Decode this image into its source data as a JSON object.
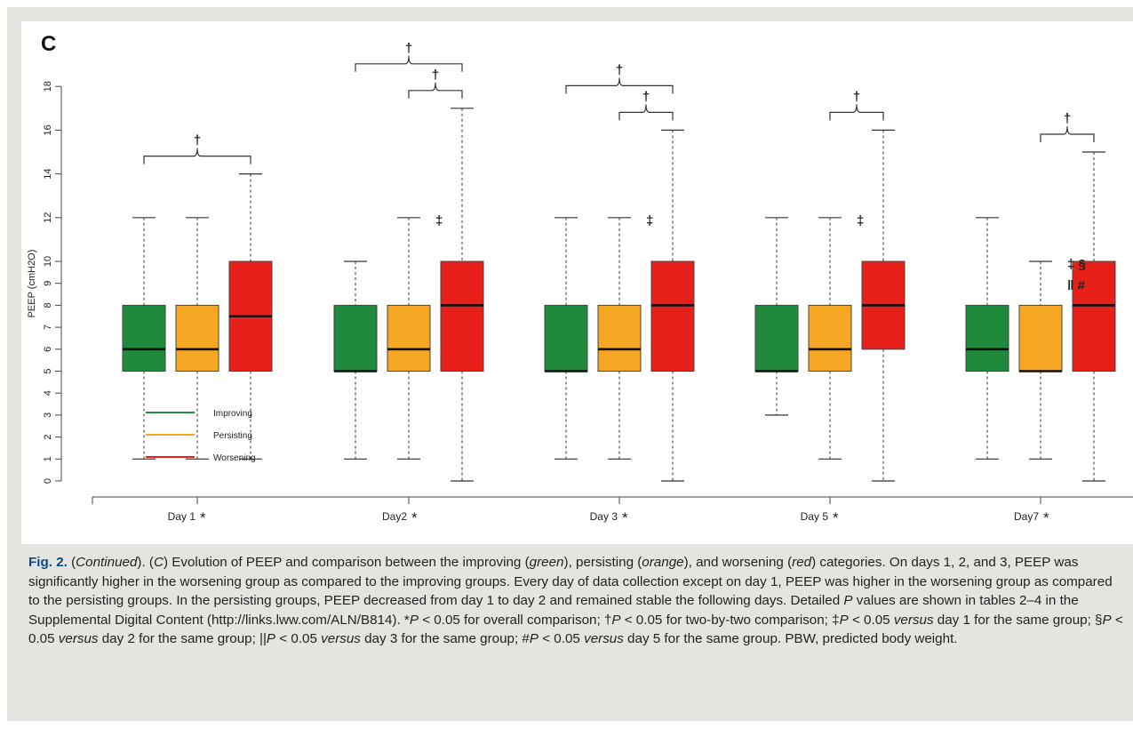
{
  "chart_data": {
    "type": "box",
    "panel_label": "C",
    "ylabel": "PEEP (cmH2O)",
    "xlabel": "",
    "ylim": [
      0,
      18
    ],
    "yticks": [
      0,
      1,
      2,
      3,
      4,
      5,
      6,
      7,
      8,
      9,
      10,
      12,
      14,
      16,
      18
    ],
    "y_scale": "nonlinear (0-10 step 1, 10-18 step 2)",
    "grid": false,
    "legend_position": "bottom-left",
    "legend": [
      "Improving",
      "Persisting",
      "Worsening"
    ],
    "colors": {
      "Improving": "#1f8a3c",
      "Persisting": "#f5a623",
      "Worsening": "#e8201c"
    },
    "days": [
      {
        "label": "Day 1",
        "mark": "*",
        "boxes": [
          {
            "group": "Improving",
            "min": 1,
            "q1": 5,
            "median": 6,
            "q3": 8,
            "max": 12
          },
          {
            "group": "Persisting",
            "min": 1,
            "q1": 5,
            "median": 6,
            "q3": 8,
            "max": 12
          },
          {
            "group": "Worsening",
            "min": 1,
            "q1": 5,
            "median": 7.5,
            "q3": 10,
            "max": 14
          }
        ],
        "annotations": [],
        "brackets": [
          {
            "from": "Improving",
            "to": "Worsening",
            "mark": "†"
          }
        ]
      },
      {
        "label": "Day2",
        "mark": "*",
        "boxes": [
          {
            "group": "Improving",
            "min": 1,
            "q1": 5,
            "median": 5,
            "q3": 8,
            "max": 10
          },
          {
            "group": "Persisting",
            "min": 1,
            "q1": 5,
            "median": 6,
            "q3": 8,
            "max": 12
          },
          {
            "group": "Worsening",
            "min": 0,
            "q1": 5,
            "median": 8,
            "q3": 10,
            "max": 17
          }
        ],
        "annotations": [
          {
            "group": "Persisting",
            "lines": [
              "‡"
            ]
          }
        ],
        "brackets": [
          {
            "from": "Improving",
            "to": "Worsening",
            "mark": "†"
          },
          {
            "from": "Persisting",
            "to": "Worsening",
            "mark": "†"
          }
        ]
      },
      {
        "label": "Day 3",
        "mark": "*",
        "boxes": [
          {
            "group": "Improving",
            "min": 1,
            "q1": 5,
            "median": 5,
            "q3": 8,
            "max": 12
          },
          {
            "group": "Persisting",
            "min": 1,
            "q1": 5,
            "median": 6,
            "q3": 8,
            "max": 12
          },
          {
            "group": "Worsening",
            "min": 0,
            "q1": 5,
            "median": 8,
            "q3": 10,
            "max": 16
          }
        ],
        "annotations": [
          {
            "group": "Persisting",
            "lines": [
              "‡"
            ]
          }
        ],
        "brackets": [
          {
            "from": "Improving",
            "to": "Worsening",
            "mark": "†"
          },
          {
            "from": "Persisting",
            "to": "Worsening",
            "mark": "†"
          }
        ]
      },
      {
        "label": "Day 5",
        "mark": "*",
        "boxes": [
          {
            "group": "Improving",
            "min": 3,
            "q1": 5,
            "median": 5,
            "q3": 8,
            "max": 12
          },
          {
            "group": "Persisting",
            "min": 1,
            "q1": 5,
            "median": 6,
            "q3": 8,
            "max": 12
          },
          {
            "group": "Worsening",
            "min": 0,
            "q1": 6,
            "median": 8,
            "q3": 10,
            "max": 16
          }
        ],
        "annotations": [
          {
            "group": "Persisting",
            "lines": [
              "‡"
            ]
          }
        ],
        "brackets": [
          {
            "from": "Persisting",
            "to": "Worsening",
            "mark": "†"
          }
        ]
      },
      {
        "label": "Day7",
        "mark": "*",
        "boxes": [
          {
            "group": "Improving",
            "min": 1,
            "q1": 5,
            "median": 6,
            "q3": 8,
            "max": 12
          },
          {
            "group": "Persisting",
            "min": 1,
            "q1": 5,
            "median": 5,
            "q3": 8,
            "max": 10
          },
          {
            "group": "Worsening",
            "min": 0,
            "q1": 5,
            "median": 8,
            "q3": 10,
            "max": 15
          }
        ],
        "annotations": [
          {
            "group": "Persisting",
            "lines": [
              "‡ §",
              "‖ #"
            ]
          }
        ],
        "brackets": [
          {
            "from": "Persisting",
            "to": "Worsening",
            "mark": "†"
          }
        ]
      }
    ]
  },
  "caption": {
    "fig_label": "Fig. 2.",
    "segments": [
      {
        "t": " ("
      },
      {
        "t": "Continued",
        "i": true
      },
      {
        "t": ").  ("
      },
      {
        "t": "C",
        "i": true
      },
      {
        "t": ") Evolution of PEEP and comparison between the improving ("
      },
      {
        "t": "green",
        "i": true
      },
      {
        "t": "), persisting ("
      },
      {
        "t": "orange",
        "i": true
      },
      {
        "t": "), and worsening ("
      },
      {
        "t": "red",
        "i": true
      },
      {
        "t": ") categories. On days 1, 2, and 3, PEEP was significantly higher in the worsening group as compared to the improving groups. Every day of data collection except on day 1, PEEP was higher in the worsening group as compared to the persisting groups. In the persisting groups, PEEP decreased from day 1 to day 2 and remained stable the following days. Detailed "
      },
      {
        "t": "P",
        "i": true
      },
      {
        "t": " values are shown in tables 2–4 in the Supplemental Digital Content (http://links.lww.com/ALN/B814). *"
      },
      {
        "t": "P",
        "i": true
      },
      {
        "t": " < 0.05 for overall comparison; †"
      },
      {
        "t": "P",
        "i": true
      },
      {
        "t": " < 0.05 for two-by-two comparison; ‡"
      },
      {
        "t": "P",
        "i": true
      },
      {
        "t": " < 0.05 "
      },
      {
        "t": "versus",
        "i": true
      },
      {
        "t": " day 1 for the same group; §"
      },
      {
        "t": "P",
        "i": true
      },
      {
        "t": " < 0.05 "
      },
      {
        "t": "versus",
        "i": true
      },
      {
        "t": " day 2 for the same group; ||"
      },
      {
        "t": "P",
        "i": true
      },
      {
        "t": " < 0.05 "
      },
      {
        "t": "versus",
        "i": true
      },
      {
        "t": " day 3 for the same group; #"
      },
      {
        "t": "P",
        "i": true
      },
      {
        "t": " < 0.05 "
      },
      {
        "t": "versus",
        "i": true
      },
      {
        "t": " day 5 for the same group. PBW, predicted body weight."
      }
    ]
  }
}
